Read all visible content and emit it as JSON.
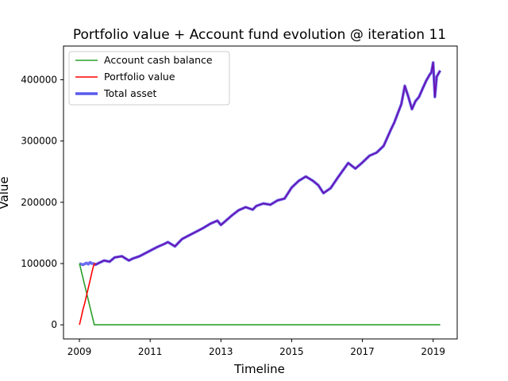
{
  "chart_data": {
    "type": "line",
    "title": "Portfolio value + Account fund evolution @ iteration 11",
    "xlabel": "Timeline",
    "ylabel": "Value",
    "xlim": [
      2008.55,
      2019.68
    ],
    "ylim": [
      -23000,
      455000
    ],
    "xticks": [
      2009,
      2011,
      2013,
      2015,
      2017,
      2019
    ],
    "xtick_labels": [
      "2009",
      "2011",
      "2013",
      "2015",
      "2017",
      "2019"
    ],
    "yticks": [
      0,
      100000,
      200000,
      300000,
      400000
    ],
    "ytick_labels": [
      "0",
      "100000",
      "200000",
      "300000",
      "400000"
    ],
    "legend": {
      "position": "upper-left",
      "entries": [
        {
          "label": "Account cash balance",
          "color": "#2ca02c"
        },
        {
          "label": "Portfolio value",
          "color": "#ff0000"
        },
        {
          "label": "Total asset",
          "color": "#5a5aee"
        }
      ]
    },
    "grid": false,
    "series": [
      {
        "name": "Account cash balance",
        "color": "#2ca02c",
        "x": [
          2009.0,
          2009.42,
          2010.0,
          2012.0,
          2014.0,
          2016.0,
          2018.0,
          2019.2
        ],
        "y": [
          100000,
          0,
          0,
          0,
          0,
          0,
          0,
          0
        ]
      },
      {
        "name": "Portfolio value",
        "color": "#ff0000",
        "x": [
          2009.0,
          2009.05,
          2009.1,
          2009.15,
          2009.2,
          2009.25,
          2009.3,
          2009.35,
          2009.4,
          2009.45
        ],
        "y": [
          0,
          12000,
          25000,
          35000,
          48000,
          60000,
          72000,
          85000,
          97000,
          101000
        ]
      },
      {
        "name": "Total asset",
        "color": "#5a5aee",
        "x": [
          2009.0,
          2009.1,
          2009.2,
          2009.25,
          2009.3,
          2009.35,
          2009.4,
          2009.45,
          2009.55,
          2009.7,
          2009.85,
          2010.0,
          2010.2,
          2010.4,
          2010.5,
          2010.7,
          2010.9,
          2011.0,
          2011.2,
          2011.4,
          2011.5,
          2011.7,
          2011.9,
          2012.1,
          2012.3,
          2012.5,
          2012.7,
          2012.9,
          2013.0,
          2013.1,
          2013.3,
          2013.5,
          2013.7,
          2013.9,
          2014.0,
          2014.2,
          2014.4,
          2014.6,
          2014.8,
          2015.0,
          2015.2,
          2015.4,
          2015.6,
          2015.75,
          2015.9,
          2016.1,
          2016.3,
          2016.4,
          2016.6,
          2016.8,
          2017.0,
          2017.2,
          2017.4,
          2017.6,
          2017.8,
          2017.9,
          2018.0,
          2018.1,
          2018.2,
          2018.3,
          2018.4,
          2018.5,
          2018.6,
          2018.7,
          2018.8,
          2018.9,
          2018.95,
          2019.0,
          2019.05,
          2019.1,
          2019.2
        ],
        "y": [
          100000,
          98000,
          101000,
          99000,
          102000,
          100000,
          100000,
          98000,
          101000,
          105000,
          103000,
          110000,
          112000,
          105000,
          108000,
          112000,
          118000,
          121000,
          127000,
          132000,
          135000,
          128000,
          140000,
          146000,
          152000,
          158000,
          165000,
          170000,
          163000,
          168000,
          178000,
          187000,
          192000,
          188000,
          194000,
          198000,
          196000,
          203000,
          206000,
          224000,
          235000,
          242000,
          235000,
          228000,
          215000,
          223000,
          240000,
          248000,
          264000,
          255000,
          265000,
          276000,
          281000,
          292000,
          318000,
          330000,
          345000,
          360000,
          390000,
          372000,
          352000,
          365000,
          372000,
          385000,
          398000,
          408000,
          412000,
          428000,
          372000,
          405000,
          415000
        ]
      }
    ]
  }
}
